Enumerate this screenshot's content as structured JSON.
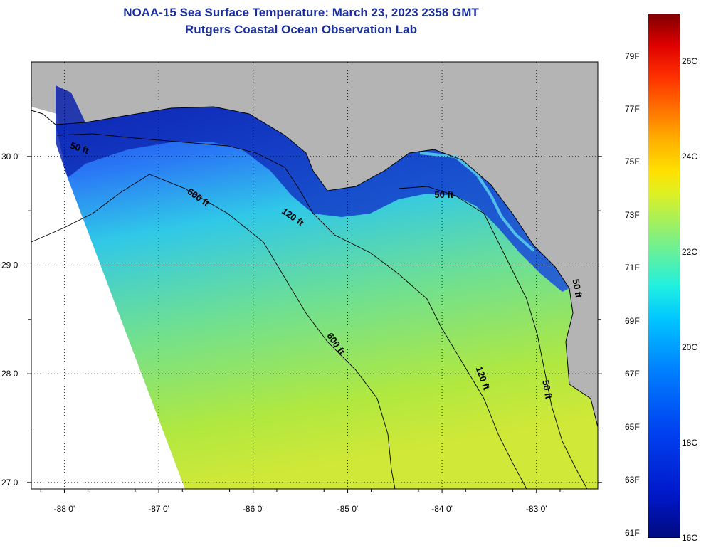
{
  "title": {
    "line1": "NOAA-15 Sea Surface Temperature:  March 23, 2023 2358 GMT",
    "line2": "Rutgers Coastal Ocean Observation Lab"
  },
  "map": {
    "lon_ticks": [
      -88,
      -87,
      -86,
      -85,
      -84,
      -83
    ],
    "lon_labels": [
      "-88 0'",
      "-87 0'",
      "-86 0'",
      "-85 0'",
      "-84 0'",
      "-83 0'"
    ],
    "lat_ticks": [
      30,
      29,
      28,
      27
    ],
    "lat_labels": [
      "30 0'",
      "29 0'",
      "28 0'",
      "27 0'"
    ],
    "lon_range": [
      -88.35,
      -82.35
    ],
    "lat_range": [
      26.94,
      30.87
    ],
    "land_color": "#b4b4b4",
    "contour_labels": [
      {
        "text": "50 ft",
        "lon": -87.85,
        "lat": 30.05,
        "angle": 18
      },
      {
        "text": "600 ft",
        "lon": -86.6,
        "lat": 29.6,
        "angle": 35
      },
      {
        "text": "120 ft",
        "lon": -85.6,
        "lat": 29.42,
        "angle": 35
      },
      {
        "text": "50 ft",
        "lon": -83.98,
        "lat": 29.62,
        "angle": 0
      },
      {
        "text": "600 ft",
        "lon": -85.15,
        "lat": 28.26,
        "angle": 55
      },
      {
        "text": "120 ft",
        "lon": -83.6,
        "lat": 27.95,
        "angle": 70
      },
      {
        "text": "50 ft",
        "lon": -82.92,
        "lat": 27.85,
        "angle": 80
      },
      {
        "text": "50 ft",
        "lon": -82.6,
        "lat": 28.78,
        "angle": 80
      }
    ]
  },
  "colorbar": {
    "fahrenheit": [
      "79F",
      "77F",
      "75F",
      "73F",
      "71F",
      "69F",
      "67F",
      "65F",
      "63F",
      "61F"
    ],
    "celsius": [
      "26C",
      "24C",
      "22C",
      "20C",
      "18C",
      "16C"
    ]
  }
}
